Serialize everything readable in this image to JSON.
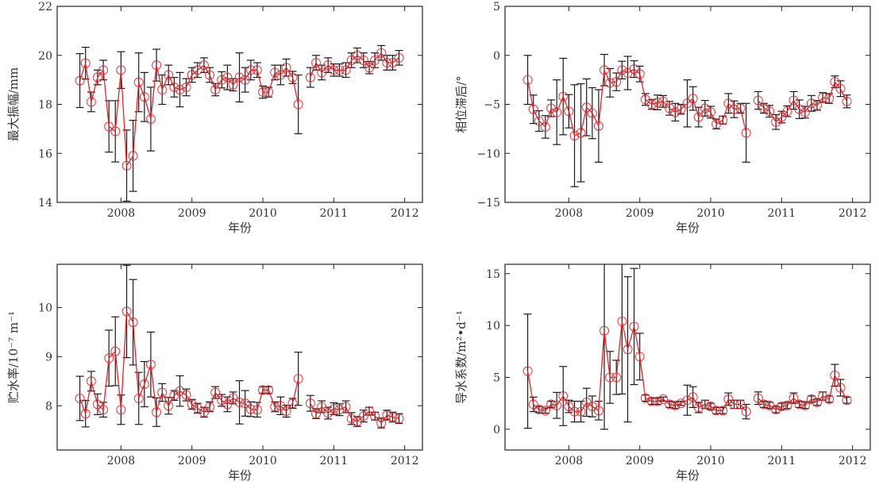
{
  "chart_data": [
    {
      "type": "line",
      "title": "",
      "xlabel": "年份",
      "ylabel": "最大振幅/mm",
      "xlim": [
        2007.1,
        2012.25
      ],
      "ylim": [
        14,
        22
      ],
      "xticks": [
        "2008",
        "2009",
        "2010",
        "2011",
        "2012"
      ],
      "yticks": [
        "14",
        "16",
        "18",
        "20",
        "22"
      ],
      "ytick_values": [
        14,
        16,
        18,
        20,
        22
      ],
      "x": [
        2007.42,
        2007.5,
        2007.58,
        2007.67,
        2007.75,
        2007.83,
        2007.92,
        2008.0,
        2008.08,
        2008.17,
        2008.25,
        2008.33,
        2008.42,
        2008.5,
        2008.58,
        2008.67,
        2008.75,
        2008.83,
        2008.92,
        2009.0,
        2009.08,
        2009.17,
        2009.25,
        2009.33,
        2009.42,
        2009.5,
        2009.58,
        2009.67,
        2009.75,
        2009.83,
        2009.92,
        2010.0,
        2010.08,
        2010.17,
        2010.25,
        2010.33,
        2010.42,
        2010.5,
        2010.58,
        2010.67,
        2010.75,
        2010.83,
        2010.92,
        2011.0,
        2011.08,
        2011.17,
        2011.25,
        2011.33,
        2011.42,
        2011.5,
        2011.58,
        2011.67,
        2011.75,
        2011.83,
        2011.92
      ],
      "values": [
        18.97,
        19.68,
        18.1,
        19.1,
        19.4,
        17.1,
        16.9,
        19.4,
        15.5,
        15.9,
        18.9,
        18.3,
        17.4,
        19.6,
        18.6,
        19.2,
        18.7,
        18.6,
        18.7,
        19.2,
        19.4,
        19.6,
        19.2,
        18.6,
        19.0,
        19.1,
        18.8,
        19.1,
        19.0,
        19.4,
        19.4,
        18.5,
        18.5,
        19.3,
        19.2,
        19.5,
        19.1,
        18.0,
        null,
        19.1,
        19.7,
        19.3,
        19.6,
        19.4,
        19.4,
        19.4,
        19.8,
        20.0,
        19.8,
        19.5,
        19.8,
        20.1,
        19.7,
        19.7,
        19.9
      ],
      "errors": [
        1.1,
        0.65,
        0.4,
        0.3,
        0.4,
        1.05,
        1.25,
        0.75,
        1.45,
        1.45,
        1.2,
        1.0,
        1.3,
        0.65,
        0.6,
        0.4,
        0.4,
        0.7,
        0.35,
        0.3,
        0.3,
        0.3,
        0.3,
        0.25,
        0.33,
        0.5,
        0.25,
        1.0,
        0.5,
        0.4,
        0.3,
        0.25,
        0.2,
        0.3,
        0.4,
        0.35,
        0.25,
        1.2,
        null,
        0.4,
        0.3,
        0.3,
        0.3,
        0.25,
        0.25,
        0.3,
        0.3,
        0.3,
        0.3,
        0.25,
        0.3,
        0.3,
        0.3,
        0.3,
        0.3
      ]
    },
    {
      "type": "line",
      "title": "",
      "xlabel": "年份",
      "ylabel": "相位滞后/°",
      "xlim": [
        2007.1,
        2012.25
      ],
      "ylim": [
        -15,
        5
      ],
      "xticks": [
        "2008",
        "2009",
        "2010",
        "2011",
        "2012"
      ],
      "yticks": [
        "−15",
        "−10",
        "−5",
        "0",
        "5"
      ],
      "ytick_values": [
        -15,
        -10,
        -5,
        0,
        5
      ],
      "x": [
        2007.42,
        2007.5,
        2007.58,
        2007.67,
        2007.75,
        2007.83,
        2007.92,
        2008.0,
        2008.08,
        2008.17,
        2008.25,
        2008.33,
        2008.42,
        2008.5,
        2008.58,
        2008.67,
        2008.75,
        2008.83,
        2008.92,
        2009.0,
        2009.08,
        2009.17,
        2009.25,
        2009.33,
        2009.42,
        2009.5,
        2009.58,
        2009.67,
        2009.75,
        2009.83,
        2009.92,
        2010.0,
        2010.08,
        2010.17,
        2010.25,
        2010.33,
        2010.42,
        2010.5,
        2010.58,
        2010.67,
        2010.75,
        2010.83,
        2010.92,
        2011.0,
        2011.08,
        2011.17,
        2011.25,
        2011.33,
        2011.42,
        2011.5,
        2011.58,
        2011.67,
        2011.75,
        2011.83,
        2011.92
      ],
      "values": [
        -2.5,
        -5.5,
        -6.7,
        -7.3,
        -5.4,
        -5.8,
        -4.2,
        -5.7,
        -8.2,
        -7.9,
        -5.3,
        -5.9,
        -7.2,
        -1.5,
        -2.8,
        -2.7,
        -1.5,
        -1.8,
        -1.4,
        -1.9,
        -4.5,
        -5.0,
        -4.8,
        -4.7,
        -5.4,
        -5.8,
        -5.5,
        -4.9,
        -4.4,
        -6.3,
        -5.4,
        -5.8,
        -7.0,
        -6.6,
        -4.9,
        -5.5,
        -5.4,
        -7.9,
        null,
        -4.6,
        -5.4,
        -5.7,
        -6.8,
        -6.3,
        -5.7,
        -4.6,
        -5.5,
        -5.8,
        -4.9,
        -5.1,
        -4.3,
        -4.4,
        -2.7,
        -3.4,
        -4.7
      ],
      "errors": [
        2.5,
        1.45,
        1.05,
        1.15,
        0.85,
        3.3,
        3.9,
        1.7,
        5.2,
        5.0,
        2.9,
        2.6,
        3.7,
        1.6,
        1.45,
        0.9,
        0.9,
        1.7,
        0.85,
        0.8,
        0.6,
        0.5,
        0.75,
        0.6,
        0.7,
        0.9,
        0.5,
        2.4,
        1.2,
        1.0,
        0.8,
        0.6,
        0.5,
        0.4,
        1.0,
        0.85,
        0.5,
        3.0,
        null,
        0.9,
        0.5,
        0.6,
        0.75,
        0.6,
        0.55,
        0.9,
        0.95,
        0.6,
        0.8,
        0.5,
        0.5,
        0.5,
        0.6,
        0.8,
        0.65
      ]
    },
    {
      "type": "line",
      "title": "",
      "xlabel": "年份",
      "ylabel": "贮水率/10⁻⁷ m⁻¹",
      "xlim": [
        2007.1,
        2012.25
      ],
      "ylim": [
        7.1,
        10.88
      ],
      "xticks": [
        "2008",
        "2009",
        "2010",
        "2011",
        "2012"
      ],
      "yticks": [
        "8",
        "9",
        "10"
      ],
      "ytick_values": [
        8,
        9,
        10
      ],
      "x": [
        2007.42,
        2007.5,
        2007.58,
        2007.67,
        2007.75,
        2007.83,
        2007.92,
        2008.0,
        2008.08,
        2008.17,
        2008.25,
        2008.33,
        2008.42,
        2008.5,
        2008.58,
        2008.67,
        2008.75,
        2008.83,
        2008.92,
        2009.0,
        2009.08,
        2009.17,
        2009.25,
        2009.33,
        2009.42,
        2009.5,
        2009.58,
        2009.67,
        2009.75,
        2009.83,
        2009.92,
        2010.0,
        2010.08,
        2010.17,
        2010.25,
        2010.33,
        2010.42,
        2010.5,
        2010.58,
        2010.67,
        2010.75,
        2010.83,
        2010.92,
        2011.0,
        2011.08,
        2011.17,
        2011.25,
        2011.33,
        2011.42,
        2011.5,
        2011.58,
        2011.67,
        2011.75,
        2011.83,
        2011.92
      ],
      "values": [
        8.15,
        7.84,
        8.5,
        8.03,
        7.92,
        8.97,
        9.11,
        7.92,
        9.92,
        9.7,
        8.15,
        8.44,
        8.84,
        7.87,
        8.27,
        8.0,
        8.21,
        8.3,
        8.22,
        8.03,
        7.95,
        7.87,
        7.98,
        8.27,
        8.11,
        8.03,
        8.16,
        8.07,
        8.05,
        7.93,
        7.92,
        8.32,
        8.32,
        7.98,
        8.0,
        7.89,
        8.05,
        8.55,
        null,
        8.05,
        7.84,
        7.98,
        7.85,
        7.94,
        7.92,
        7.98,
        7.74,
        7.68,
        7.79,
        7.89,
        7.79,
        7.65,
        7.81,
        7.77,
        7.74
      ],
      "errors": [
        0.45,
        0.27,
        0.2,
        0.21,
        0.15,
        0.57,
        0.7,
        0.3,
        0.94,
        0.87,
        0.53,
        0.46,
        0.66,
        0.29,
        0.18,
        0.17,
        0.1,
        0.31,
        0.12,
        0.1,
        0.1,
        0.1,
        0.1,
        0.12,
        0.12,
        0.15,
        0.12,
        0.44,
        0.26,
        0.15,
        0.15,
        0.07,
        0.07,
        0.1,
        0.18,
        0.12,
        0.1,
        0.54,
        null,
        0.16,
        0.1,
        0.12,
        0.12,
        0.12,
        0.12,
        0.12,
        0.12,
        0.1,
        0.12,
        0.08,
        0.08,
        0.1,
        0.1,
        0.1,
        0.1
      ]
    },
    {
      "type": "line",
      "title": "",
      "xlabel": "年份",
      "ylabel": "导水系数/m²•d⁻¹",
      "xlim": [
        2007.1,
        2012.25
      ],
      "ylim": [
        -2,
        15.9
      ],
      "xticks": [
        "2008",
        "2009",
        "2010",
        "2011",
        "2012"
      ],
      "yticks": [
        "0",
        "5",
        "10",
        "15"
      ],
      "ytick_values": [
        0,
        5,
        10,
        15
      ],
      "x": [
        2007.42,
        2007.5,
        2007.58,
        2007.67,
        2007.75,
        2007.83,
        2007.92,
        2008.0,
        2008.08,
        2008.17,
        2008.25,
        2008.33,
        2008.42,
        2008.5,
        2008.58,
        2008.67,
        2008.75,
        2008.83,
        2008.92,
        2009.0,
        2009.08,
        2009.17,
        2009.25,
        2009.33,
        2009.42,
        2009.5,
        2009.58,
        2009.67,
        2009.75,
        2009.83,
        2009.92,
        2010.0,
        2010.08,
        2010.17,
        2010.25,
        2010.33,
        2010.42,
        2010.5,
        2010.58,
        2010.67,
        2010.75,
        2010.83,
        2010.92,
        2011.0,
        2011.08,
        2011.17,
        2011.25,
        2011.33,
        2011.42,
        2011.5,
        2011.58,
        2011.67,
        2011.75,
        2011.83,
        2011.92
      ],
      "values": [
        5.6,
        2.4,
        1.9,
        1.8,
        2.4,
        2.3,
        3.2,
        2.2,
        1.7,
        1.7,
        2.6,
        2.2,
        1.8,
        9.5,
        5.0,
        5.0,
        10.4,
        7.7,
        9.9,
        7.0,
        3.0,
        2.7,
        2.7,
        2.9,
        2.4,
        2.3,
        2.5,
        2.8,
        3.1,
        2.1,
        2.4,
        2.2,
        1.8,
        1.8,
        2.9,
        2.4,
        2.4,
        1.7,
        null,
        3.0,
        2.4,
        2.3,
        1.9,
        2.2,
        2.3,
        3.0,
        2.4,
        2.3,
        2.9,
        2.6,
        3.2,
        2.9,
        5.2,
        4.0,
        2.8
      ],
      "errors": [
        5.5,
        0.7,
        0.3,
        0.25,
        0.3,
        1.25,
        2.85,
        0.6,
        1.0,
        1.0,
        1.35,
        1.0,
        0.9,
        9.5,
        2.5,
        1.65,
        7.0,
        7.0,
        5.6,
        2.25,
        0.3,
        0.3,
        0.3,
        0.2,
        0.3,
        0.3,
        0.2,
        1.45,
        1.0,
        0.5,
        0.4,
        0.3,
        0.3,
        0.3,
        0.6,
        0.4,
        0.4,
        0.7,
        null,
        0.6,
        0.3,
        0.3,
        0.3,
        0.3,
        0.3,
        0.5,
        0.3,
        0.3,
        0.3,
        0.3,
        0.4,
        0.3,
        1.05,
        0.8,
        0.3
      ]
    }
  ],
  "colors": {
    "series": "#e8232a",
    "errorbar": "#1a1a1a",
    "axis": "#222222"
  }
}
